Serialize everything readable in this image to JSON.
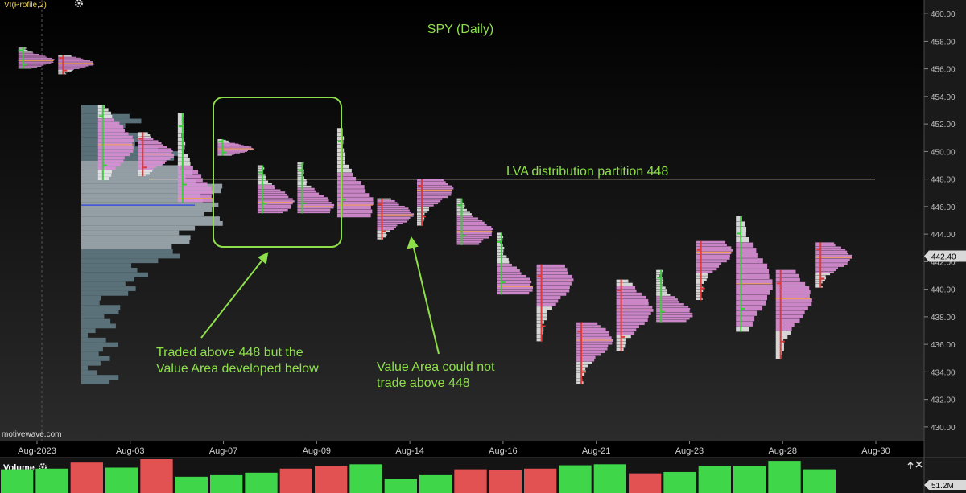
{
  "study": {
    "label": "VI(Profile,2)",
    "gear_icon": "gear-icon"
  },
  "chart_data": {
    "type": "market-profile-candlestick",
    "title": "SPY (Daily)",
    "watermark": "motivewave.com",
    "ylim": [
      429,
      461
    ],
    "y_ticks": [
      430,
      432,
      434,
      436,
      438,
      440,
      442,
      444,
      446,
      448,
      450,
      452,
      454,
      456,
      458,
      460
    ],
    "y_tick_labels": [
      "430.00",
      "432.00",
      "434.00",
      "436.00",
      "438.00",
      "440.00",
      "442.00",
      "444.00",
      "446.00",
      "448.00",
      "450.00",
      "452.00",
      "454.00",
      "456.00",
      "458.00",
      "460.00"
    ],
    "x_labels": [
      "Aug-2023",
      "Aug-03",
      "Aug-07",
      "Aug-09",
      "Aug-14",
      "Aug-16",
      "Aug-21",
      "Aug-23",
      "Aug-28",
      "Aug-30"
    ],
    "last_price_label": "442.40",
    "last_price": 442.4,
    "days": [
      {
        "low": 456.0,
        "high": 457.6,
        "poc": 456.6
      },
      {
        "low": 455.6,
        "high": 457.0,
        "poc": 456.4
      },
      {
        "low": 447.9,
        "high": 453.4,
        "poc": 450.5
      },
      {
        "low": 448.2,
        "high": 451.4,
        "poc": 449.8
      },
      {
        "low": 446.3,
        "high": 452.8,
        "poc": 446.6
      },
      {
        "low": 449.7,
        "high": 450.9,
        "poc": 450.2
      },
      {
        "low": 445.5,
        "high": 449.0,
        "poc": 446.3
      },
      {
        "low": 445.5,
        "high": 449.2,
        "poc": 446.0
      },
      {
        "low": 445.2,
        "high": 451.7,
        "poc": 446.1
      },
      {
        "low": 443.6,
        "high": 446.6,
        "poc": 445.4
      },
      {
        "low": 444.6,
        "high": 448.0,
        "poc": 447.2
      },
      {
        "low": 443.2,
        "high": 446.6,
        "poc": 444.2
      },
      {
        "low": 439.6,
        "high": 444.1,
        "poc": 440.2
      },
      {
        "low": 436.2,
        "high": 441.8,
        "poc": 440.6
      },
      {
        "low": 433.1,
        "high": 437.6,
        "poc": 436.3
      },
      {
        "low": 435.5,
        "high": 440.7,
        "poc": 438.5
      },
      {
        "low": 437.6,
        "high": 441.4,
        "poc": 438.2
      },
      {
        "low": 439.2,
        "high": 443.5,
        "poc": 442.7
      },
      {
        "low": 436.9,
        "high": 445.3,
        "poc": 440.4
      },
      {
        "low": 434.9,
        "high": 441.4,
        "poc": 439.3
      },
      {
        "low": 440.1,
        "high": 443.4,
        "poc": 442.3
      }
    ],
    "composite_profile": {
      "low": 433.1,
      "high": 453.4,
      "poc": 446.1
    },
    "lines": [
      {
        "name": "lva-partition",
        "y": 448.0
      },
      {
        "name": "composite-poc",
        "y": 446.1
      }
    ],
    "volume": {
      "label": "Volume",
      "current_label": "51.2M",
      "bars": [
        {
          "v": 0.7,
          "up": true
        },
        {
          "v": 0.72,
          "up": true
        },
        {
          "v": 0.9,
          "up": false
        },
        {
          "v": 0.75,
          "up": true
        },
        {
          "v": 1.0,
          "up": false
        },
        {
          "v": 0.48,
          "up": true
        },
        {
          "v": 0.55,
          "up": true
        },
        {
          "v": 0.6,
          "up": true
        },
        {
          "v": 0.72,
          "up": false
        },
        {
          "v": 0.8,
          "up": false
        },
        {
          "v": 0.85,
          "up": true
        },
        {
          "v": 0.42,
          "up": true
        },
        {
          "v": 0.55,
          "up": true
        },
        {
          "v": 0.7,
          "up": false
        },
        {
          "v": 0.68,
          "up": false
        },
        {
          "v": 0.72,
          "up": false
        },
        {
          "v": 0.82,
          "up": true
        },
        {
          "v": 0.85,
          "up": true
        },
        {
          "v": 0.58,
          "up": false
        },
        {
          "v": 0.62,
          "up": true
        },
        {
          "v": 0.8,
          "up": true
        },
        {
          "v": 0.8,
          "up": true
        },
        {
          "v": 0.95,
          "up": true
        },
        {
          "v": 0.7,
          "up": true
        }
      ]
    },
    "annotations": {
      "lva_text": "LVA distribution partition 448",
      "note1_line1": "Traded above 448 but the",
      "note1_line2": "Value Area developed below",
      "note2_line1": "Value Area could not",
      "note2_line2": "trade above 448"
    },
    "colors": {
      "accent_green": "#8ee04a",
      "profile_pink": "#d98fd6",
      "profile_white": "#e6e6e6",
      "red": "#e03a3a",
      "green": "#3ecb3e",
      "composite": "#8aa0a8",
      "poc_blue": "#3c4fe0"
    }
  },
  "panel": {
    "expand_icon": "expand-icon",
    "close_icon": "close-icon"
  }
}
